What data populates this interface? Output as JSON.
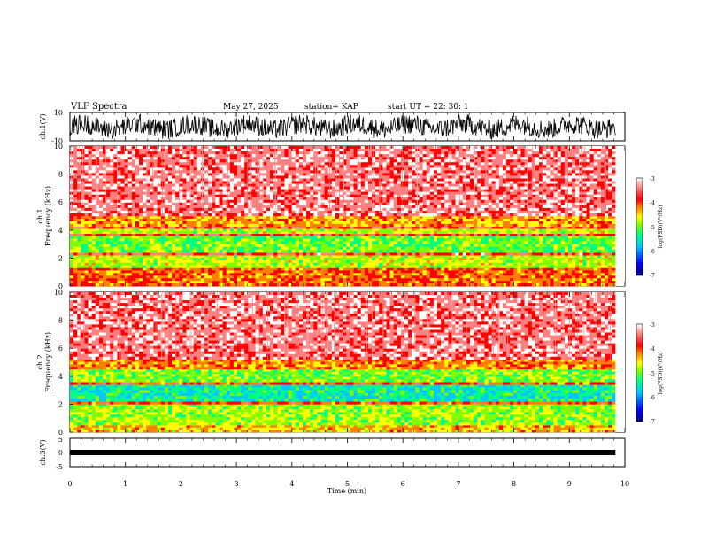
{
  "header": {
    "title": "VLF Spectra",
    "date": "May 27, 2025",
    "station": "station= KAP",
    "start": "start  UT  =   22: 30: 1"
  },
  "chart_data": [
    {
      "type": "line",
      "name": "ch1-waveform",
      "ylabel": "ch.1(V)",
      "ylim": [
        -10,
        10
      ],
      "yticks": [
        "10",
        "-10"
      ],
      "xlim": [
        0,
        9.83
      ],
      "description_values": "noisy voltage trace roughly between -10 and 10 V"
    },
    {
      "type": "heatmap",
      "name": "ch1-spectrogram",
      "ylabel_line1": "ch.1",
      "ylabel_line2": "Frequency (kHz)",
      "ylim": [
        0,
        10
      ],
      "yticks": [
        "0",
        "2",
        "4",
        "6",
        "8",
        "10"
      ],
      "xlim": [
        0,
        9.83
      ],
      "bands_khz": [
        {
          "from": 0,
          "to": 1.3,
          "level": -4.3
        },
        {
          "from": 1.3,
          "to": 2.2,
          "level": -5.0
        },
        {
          "from": 2.2,
          "to": 2.4,
          "level": -3.8
        },
        {
          "from": 2.4,
          "to": 3.6,
          "level": -5.3
        },
        {
          "from": 3.6,
          "to": 3.75,
          "level": -3.9
        },
        {
          "from": 3.75,
          "to": 4.1,
          "level": -5.0
        },
        {
          "from": 4.1,
          "to": 4.25,
          "level": -3.9
        },
        {
          "from": 4.25,
          "to": 5.0,
          "level": -4.5
        },
        {
          "from": 5.0,
          "to": 10.0,
          "level": -3.6
        }
      ]
    },
    {
      "type": "heatmap",
      "name": "ch2-spectrogram",
      "ylabel_line1": "ch.2",
      "ylabel_line2": "Frequency (kHz)",
      "ylim": [
        0,
        10
      ],
      "yticks": [
        "0",
        "2",
        "4",
        "6",
        "8",
        "10"
      ],
      "xlim": [
        0,
        9.83
      ],
      "bands_khz": [
        {
          "from": 0,
          "to": 0.5,
          "level": -4.6
        },
        {
          "from": 0.5,
          "to": 2.0,
          "level": -5.1
        },
        {
          "from": 2.0,
          "to": 2.2,
          "level": -4.2
        },
        {
          "from": 2.2,
          "to": 3.4,
          "level": -5.7
        },
        {
          "from": 3.4,
          "to": 3.6,
          "level": -4.2
        },
        {
          "from": 3.6,
          "to": 4.5,
          "level": -5.2
        },
        {
          "from": 4.5,
          "to": 5.2,
          "level": -4.4
        },
        {
          "from": 5.2,
          "to": 10.0,
          "level": -3.6
        }
      ]
    },
    {
      "type": "line",
      "name": "ch3-waveform",
      "ylabel": "ch.3(V)",
      "ylim": [
        -5,
        5
      ],
      "yticks": [
        "5",
        "0",
        "-5"
      ],
      "xlim": [
        0,
        9.83
      ],
      "level_v": 0
    }
  ],
  "xaxis": {
    "label": "Time  (min)",
    "range": [
      0,
      10
    ],
    "ticks": [
      "0",
      "1",
      "2",
      "3",
      "4",
      "5",
      "6",
      "7",
      "8",
      "9",
      "10"
    ]
  },
  "colorbar": {
    "label": "log(PSD)(V²/Hz)",
    "range": [
      -7,
      -3
    ],
    "ticks": [
      "-3",
      "-4",
      "-5",
      "-6",
      "-7"
    ],
    "colors": [
      "#000080",
      "#0000ff",
      "#00c8ff",
      "#00ff80",
      "#80ff00",
      "#ffff00",
      "#ff8000",
      "#ff0000",
      "#ff8080",
      "#ffffff"
    ]
  }
}
